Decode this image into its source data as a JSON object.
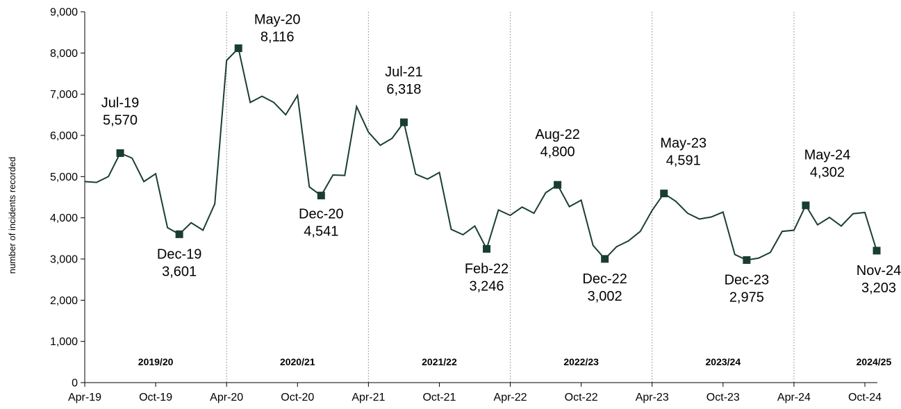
{
  "chart_data": {
    "type": "line",
    "ylabel": "number of incidents recorded",
    "ylim": [
      0,
      9000
    ],
    "y_ticks": [
      "0",
      "1,000",
      "2,000",
      "3,000",
      "4,000",
      "5,000",
      "6,000",
      "7,000",
      "8,000",
      "9,000"
    ],
    "x_tick_labels": [
      {
        "index": 0,
        "label": "Apr-19"
      },
      {
        "index": 6,
        "label": "Oct-19"
      },
      {
        "index": 12,
        "label": "Apr-20"
      },
      {
        "index": 18,
        "label": "Oct-20"
      },
      {
        "index": 24,
        "label": "Apr-21"
      },
      {
        "index": 30,
        "label": "Oct-21"
      },
      {
        "index": 36,
        "label": "Apr-22"
      },
      {
        "index": 42,
        "label": "Oct-22"
      },
      {
        "index": 48,
        "label": "Apr-23"
      },
      {
        "index": 54,
        "label": "Oct-23"
      },
      {
        "index": 60,
        "label": "Apr-24"
      },
      {
        "index": 66,
        "label": "Oct-24"
      }
    ],
    "x": [
      "Apr-19",
      "May-19",
      "Jun-19",
      "Jul-19",
      "Aug-19",
      "Sep-19",
      "Oct-19",
      "Nov-19",
      "Dec-19",
      "Jan-20",
      "Feb-20",
      "Mar-20",
      "Apr-20",
      "May-20",
      "Jun-20",
      "Jul-20",
      "Aug-20",
      "Sep-20",
      "Oct-20",
      "Nov-20",
      "Dec-20",
      "Jan-21",
      "Feb-21",
      "Mar-21",
      "Apr-21",
      "May-21",
      "Jun-21",
      "Jul-21",
      "Aug-21",
      "Sep-21",
      "Oct-21",
      "Nov-21",
      "Dec-21",
      "Jan-22",
      "Feb-22",
      "Mar-22",
      "Apr-22",
      "May-22",
      "Jun-22",
      "Jul-22",
      "Aug-22",
      "Sep-22",
      "Oct-22",
      "Nov-22",
      "Dec-22",
      "Jan-23",
      "Feb-23",
      "Mar-23",
      "Apr-23",
      "May-23",
      "Jun-23",
      "Jul-23",
      "Aug-23",
      "Sep-23",
      "Oct-23",
      "Nov-23",
      "Dec-23",
      "Jan-24",
      "Feb-24",
      "Mar-24",
      "Apr-24",
      "May-24",
      "Jun-24",
      "Jul-24",
      "Aug-24",
      "Sep-24",
      "Oct-24",
      "Nov-24"
    ],
    "values": [
      4880,
      4860,
      5000,
      5570,
      5450,
      4880,
      5070,
      3760,
      3601,
      3880,
      3700,
      4340,
      7820,
      8116,
      6800,
      6950,
      6800,
      6500,
      6970,
      4750,
      4541,
      5040,
      5030,
      6700,
      6080,
      5760,
      5930,
      6318,
      5060,
      4940,
      5100,
      3720,
      3590,
      3800,
      3246,
      4190,
      4060,
      4260,
      4110,
      4610,
      4800,
      4270,
      4430,
      3330,
      3002,
      3300,
      3440,
      3670,
      4180,
      4591,
      4400,
      4110,
      3970,
      4020,
      4140,
      3110,
      2975,
      3020,
      3160,
      3670,
      3700,
      4302,
      3830,
      4010,
      3800,
      4100,
      4130,
      3203
    ],
    "series_color": "#1a3d32",
    "marker_color": "#1a3d32",
    "annotations": [
      {
        "index": 3,
        "month": "Jul-19",
        "value": "5,570"
      },
      {
        "index": 8,
        "month": "Dec-19",
        "value": "3,601"
      },
      {
        "index": 13,
        "month": "May-20",
        "value": "8,116"
      },
      {
        "index": 20,
        "month": "Dec-20",
        "value": "4,541"
      },
      {
        "index": 27,
        "month": "Jul-21",
        "value": "6,318"
      },
      {
        "index": 34,
        "month": "Feb-22",
        "value": "3,246"
      },
      {
        "index": 40,
        "month": "Aug-22",
        "value": "4,800"
      },
      {
        "index": 44,
        "month": "Dec-22",
        "value": "3,002"
      },
      {
        "index": 49,
        "month": "May-23",
        "value": "4,591"
      },
      {
        "index": 56,
        "month": "Dec-23",
        "value": "2,975"
      },
      {
        "index": 61,
        "month": "May-24",
        "value": "4,302"
      },
      {
        "index": 67,
        "month": "Nov-24",
        "value": "3,203"
      }
    ],
    "financial_years": [
      {
        "label": "2019/20",
        "start": 0,
        "end": 11
      },
      {
        "label": "2020/21",
        "start": 12,
        "end": 23
      },
      {
        "label": "2021/22",
        "start": 24,
        "end": 35
      },
      {
        "label": "2022/23",
        "start": 36,
        "end": 47
      },
      {
        "label": "2023/24",
        "start": 48,
        "end": 59
      },
      {
        "label": "2024/25",
        "start": 60,
        "end": 67
      }
    ],
    "year_divider_indices": [
      12,
      24,
      36,
      48,
      60
    ],
    "grid": false
  }
}
